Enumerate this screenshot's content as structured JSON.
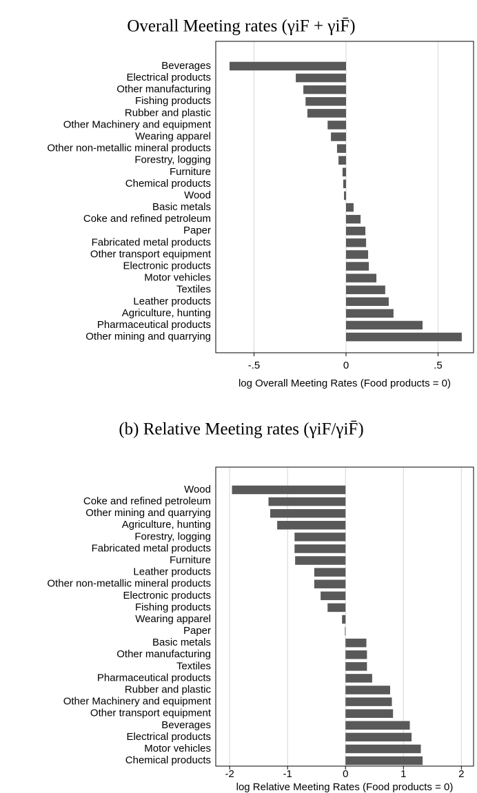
{
  "chart_data": [
    {
      "type": "bar",
      "orientation": "horizontal",
      "title": "Overall Meeting rates (γiF + γiF̄)",
      "xlabel": "log Overall Meeting Rates (Food products = 0)",
      "categories": [
        "Beverages",
        "Electrical products",
        "Other manufacturing",
        "Fishing products",
        "Rubber and plastic",
        "Other Machinery and equipment",
        "Wearing apparel",
        "Other non-metallic mineral products",
        "Forestry, logging",
        "Furniture",
        "Chemical products",
        "Wood",
        "Basic metals",
        "Coke and refined petroleum",
        "Paper",
        "Fabricated metal products",
        "Other transport equipment",
        "Electronic products",
        "Motor vehicles",
        "Textiles",
        "Leather products",
        "Agriculture, hunting",
        "Pharmaceutical products",
        "Other mining and quarrying"
      ],
      "values": [
        -0.633,
        -0.273,
        -0.232,
        -0.22,
        -0.21,
        -0.1,
        -0.082,
        -0.049,
        -0.041,
        -0.019,
        -0.015,
        -0.011,
        0.041,
        0.079,
        0.105,
        0.109,
        0.12,
        0.124,
        0.165,
        0.213,
        0.232,
        0.258,
        0.416,
        0.629
      ],
      "color": "#595959",
      "xlim": [
        -0.708,
        0.693
      ],
      "xticks": [
        {
          "value": -0.5,
          "label": "-.5"
        },
        0,
        {
          "value": 0.5,
          "label": ".5"
        }
      ],
      "grid": true
    },
    {
      "type": "bar",
      "orientation": "horizontal",
      "title": "(b) Relative Meeting rates (γiF/γiF̄)",
      "xlabel": "log Relative Meeting Rates (Food products = 0)",
      "categories": [
        "Wood",
        "Coke and refined petroleum",
        "Other mining and quarrying",
        "Agriculture, hunting",
        "Forestry, logging",
        "Fabricated metal products",
        "Furniture",
        "Leather products",
        "Other non-metallic mineral products",
        "Electronic products",
        "Fishing products",
        "Wearing apparel",
        "Paper",
        "Basic metals",
        "Other manufacturing",
        "Textiles",
        "Pharmaceutical products",
        "Rubber and plastic",
        "Other Machinery and equipment",
        "Other transport equipment",
        "Beverages",
        "Electrical products",
        "Motor vehicles",
        "Chemical products"
      ],
      "values": [
        -1.96,
        -1.33,
        -1.3,
        -1.18,
        -0.88,
        -0.88,
        -0.87,
        -0.54,
        -0.54,
        -0.43,
        -0.31,
        -0.06,
        -0.01,
        0.36,
        0.37,
        0.37,
        0.46,
        0.77,
        0.8,
        0.82,
        1.11,
        1.14,
        1.3,
        1.33
      ],
      "color": "#595959",
      "xlim": [
        -2.24,
        2.21
      ],
      "xticks": [
        -2,
        -1,
        0,
        1,
        2
      ],
      "grid": true
    }
  ]
}
